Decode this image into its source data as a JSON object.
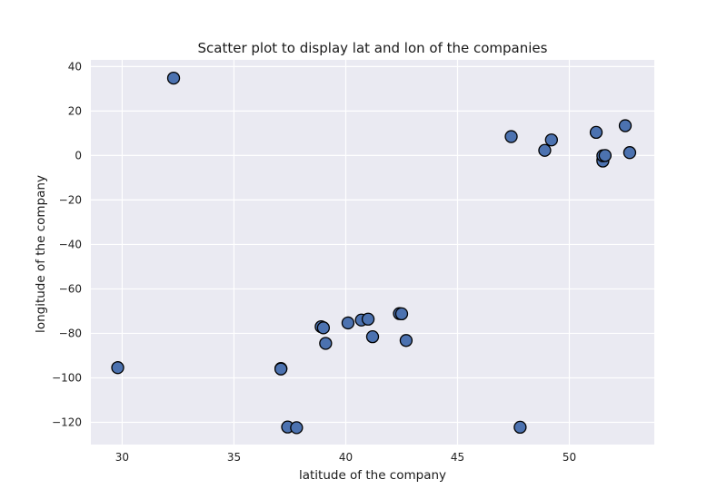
{
  "chart_data": {
    "type": "scatter",
    "title": "Scatter plot to display lat and lon of the companies",
    "xlabel": "latitude of the company",
    "ylabel": "longitude of the company",
    "xlim": [
      28.6,
      53.8
    ],
    "ylim": [
      -130,
      43
    ],
    "xticks": [
      30,
      35,
      40,
      45,
      50
    ],
    "yticks": [
      40,
      20,
      0,
      -20,
      -40,
      -60,
      -80,
      -100,
      -120
    ],
    "grid": true,
    "colors": {
      "background": "#eaeaf2",
      "grid": "#ffffff",
      "marker": "#4c72b0",
      "marker_edge": "#000000"
    },
    "points": [
      {
        "x": 32.3,
        "y": 34.8
      },
      {
        "x": 29.8,
        "y": -95.4
      },
      {
        "x": 37.1,
        "y": -95.8
      },
      {
        "x": 37.1,
        "y": -96.0
      },
      {
        "x": 37.4,
        "y": -122.1
      },
      {
        "x": 37.8,
        "y": -122.4
      },
      {
        "x": 38.9,
        "y": -77.0
      },
      {
        "x": 39.0,
        "y": -77.5
      },
      {
        "x": 39.1,
        "y": -84.5
      },
      {
        "x": 40.1,
        "y": -75.3
      },
      {
        "x": 40.7,
        "y": -74.0
      },
      {
        "x": 41.0,
        "y": -73.6
      },
      {
        "x": 41.2,
        "y": -81.5
      },
      {
        "x": 42.4,
        "y": -71.1
      },
      {
        "x": 42.5,
        "y": -71.2
      },
      {
        "x": 42.7,
        "y": -83.2
      },
      {
        "x": 47.4,
        "y": 8.5
      },
      {
        "x": 47.8,
        "y": -122.2
      },
      {
        "x": 48.9,
        "y": 2.3
      },
      {
        "x": 49.2,
        "y": 7.0
      },
      {
        "x": 51.2,
        "y": 10.4
      },
      {
        "x": 51.5,
        "y": -2.0
      },
      {
        "x": 51.5,
        "y": -2.5
      },
      {
        "x": 51.5,
        "y": -0.1
      },
      {
        "x": 51.6,
        "y": 0.0
      },
      {
        "x": 52.5,
        "y": 13.4
      },
      {
        "x": 52.7,
        "y": 1.3
      }
    ]
  }
}
